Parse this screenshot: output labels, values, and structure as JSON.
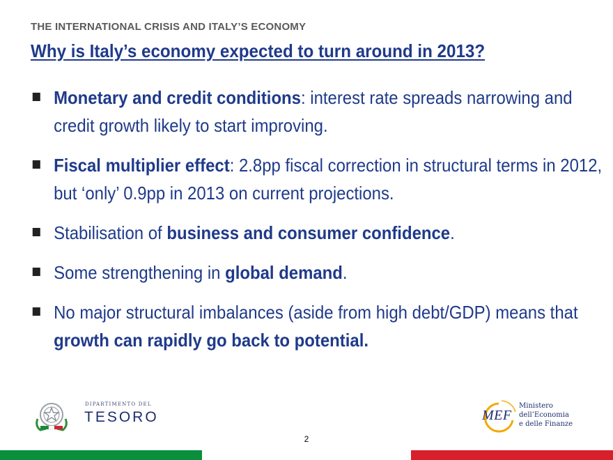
{
  "header": {
    "section": "THE INTERNATIONAL CRISIS AND ITALY’S ECONOMY",
    "title": "Why is Italy’s economy expected to turn around in 2013?"
  },
  "bullets": [
    {
      "bold_lead": "Monetary and credit conditions",
      "text": ": interest rate spreads narrowing and credit growth likely to start improving."
    },
    {
      "bold_lead": "Fiscal multiplier effect",
      "text": ": 2.8pp fiscal correction in structural terms in 2012, but ‘only’ 0.9pp in 2013 on current projections."
    },
    {
      "text_before": "Stabilisation of ",
      "bold": "business and consumer confidence",
      "text_after": "."
    },
    {
      "text_before": "Some strengthening in ",
      "bold": "global demand",
      "text_after": "."
    },
    {
      "text_before": "No major structural imbalances (aside from high debt/GDP) means that ",
      "bold": "growth can rapidly go back to potential."
    }
  ],
  "footer": {
    "left_logo": {
      "small": "Dipartimento del",
      "big": "TESORO",
      "icon": "italian-republic-emblem"
    },
    "right_logo": {
      "acronym": "MEF",
      "line1": "Ministero",
      "line2": "dell’Economia",
      "line3": "e delle Finanze"
    },
    "page_number": "2"
  },
  "colors": {
    "title_blue": "#1f3a8a",
    "flag_green": "#0a8f3d",
    "flag_red": "#d8202c"
  }
}
